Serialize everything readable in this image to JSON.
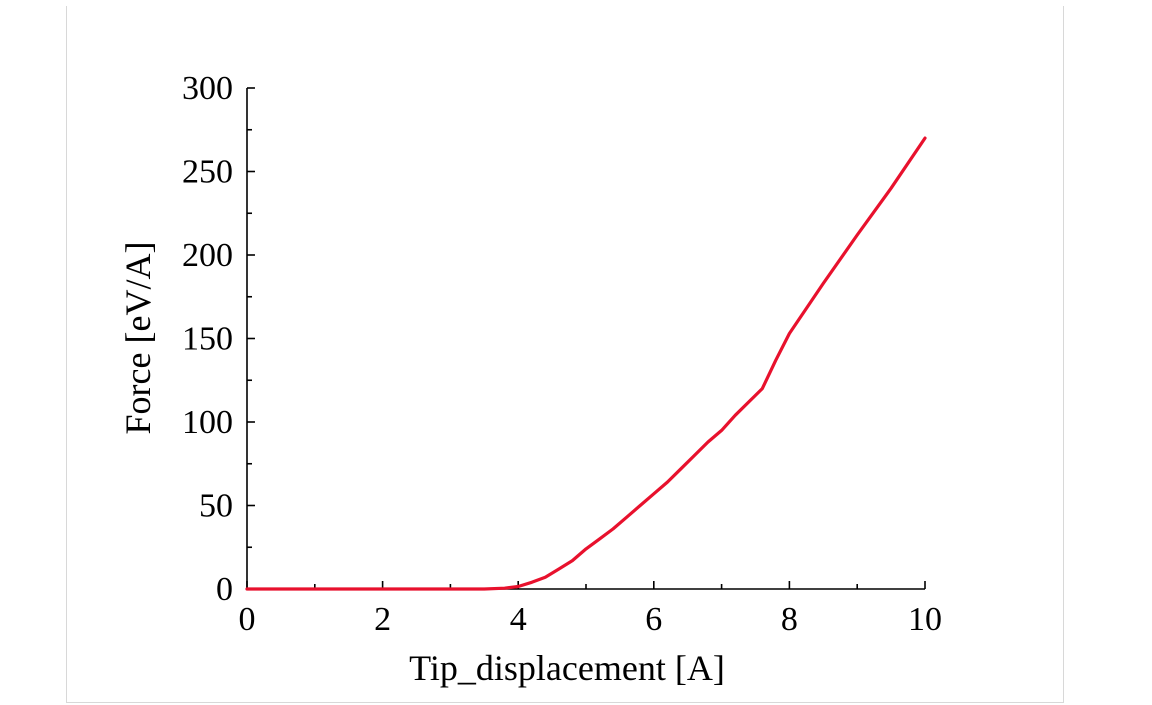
{
  "chart_data": {
    "type": "line",
    "xlabel": "Tip_displacement [A]",
    "ylabel": "Force [eV/A]",
    "xlim": [
      0,
      10
    ],
    "ylim": [
      0,
      300
    ],
    "x_ticks": [
      "0",
      "2",
      "4",
      "6",
      "8",
      "10"
    ],
    "y_ticks": [
      "0",
      "50",
      "100",
      "150",
      "200",
      "250",
      "300"
    ],
    "grid": false,
    "series": [
      {
        "color": "#e8112d",
        "x": [
          0,
          1,
          2,
          3,
          3.5,
          3.8,
          4.0,
          4.2,
          4.4,
          4.6,
          4.8,
          5.0,
          5.2,
          5.4,
          5.6,
          5.8,
          6.0,
          6.2,
          6.4,
          6.6,
          6.8,
          7.0,
          7.2,
          7.4,
          7.6,
          7.8,
          8.0,
          8.5,
          9.0,
          9.5,
          10.0
        ],
        "y": [
          0,
          0,
          0,
          0,
          0,
          0.5,
          1.5,
          4,
          7,
          12,
          17,
          24,
          30,
          36,
          43,
          50,
          57,
          64,
          72,
          80,
          88,
          95,
          104,
          112,
          120,
          137,
          153,
          183,
          212,
          240,
          270
        ]
      }
    ]
  }
}
